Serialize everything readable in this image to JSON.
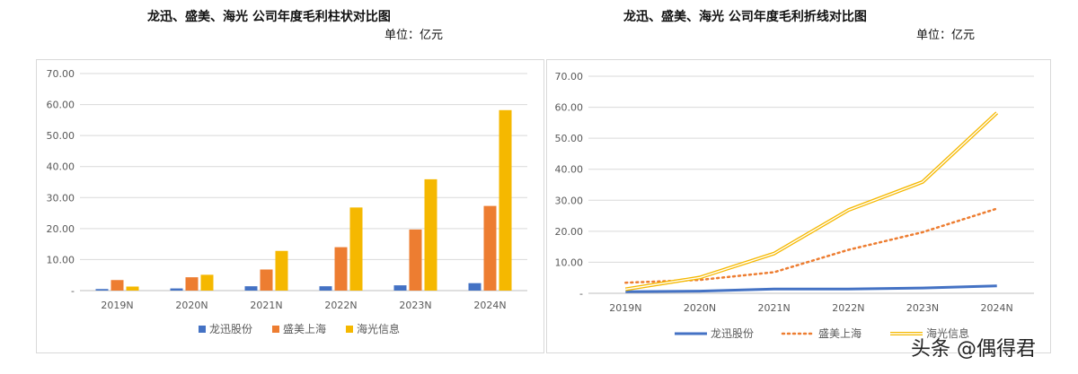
{
  "chart_data": [
    {
      "type": "bar",
      "title": "龙迅、盛美、海光 公司年度毛利柱状对比图",
      "unit": "单位：亿元",
      "categories": [
        "2019N",
        "2020N",
        "2021N",
        "2022N",
        "2023N",
        "2024N"
      ],
      "series": [
        {
          "name": "龙迅股份",
          "color": "#4472c4",
          "values": [
            0.5,
            0.7,
            1.4,
            1.4,
            1.7,
            2.4
          ]
        },
        {
          "name": "盛美上海",
          "color": "#ed7d31",
          "values": [
            3.4,
            4.3,
            6.8,
            14.0,
            19.7,
            27.3
          ]
        },
        {
          "name": "海光信息",
          "color": "#f5b800",
          "values": [
            1.3,
            5.1,
            12.8,
            26.8,
            35.9,
            58.2
          ]
        }
      ],
      "ylim": [
        0,
        70
      ],
      "yticks": [
        "-",
        "10.00",
        "20.00",
        "30.00",
        "40.00",
        "50.00",
        "60.00",
        "70.00"
      ],
      "grid": true,
      "legend": "bottom"
    },
    {
      "type": "line",
      "title": "龙迅、盛美、海光 公司年度毛利折线对比图",
      "unit": "单位：亿元",
      "categories": [
        "2019N",
        "2020N",
        "2021N",
        "2022N",
        "2023N",
        "2024N"
      ],
      "series": [
        {
          "name": "龙迅股份",
          "color": "#4472c4",
          "style": "solid",
          "values": [
            0.5,
            0.7,
            1.4,
            1.4,
            1.7,
            2.4
          ]
        },
        {
          "name": "盛美上海",
          "color": "#ed7d31",
          "style": "dotted",
          "values": [
            3.4,
            4.3,
            6.8,
            14.0,
            19.7,
            27.3
          ]
        },
        {
          "name": "海光信息",
          "color": "#f5b800",
          "style": "double",
          "values": [
            1.3,
            5.1,
            12.8,
            26.8,
            35.9,
            58.2
          ]
        }
      ],
      "ylim": [
        0,
        70
      ],
      "yticks": [
        "-",
        "10.00",
        "20.00",
        "30.00",
        "40.00",
        "50.00",
        "60.00",
        "70.00"
      ],
      "grid": true,
      "legend": "bottom"
    }
  ],
  "watermark": "头条 @偶得君"
}
